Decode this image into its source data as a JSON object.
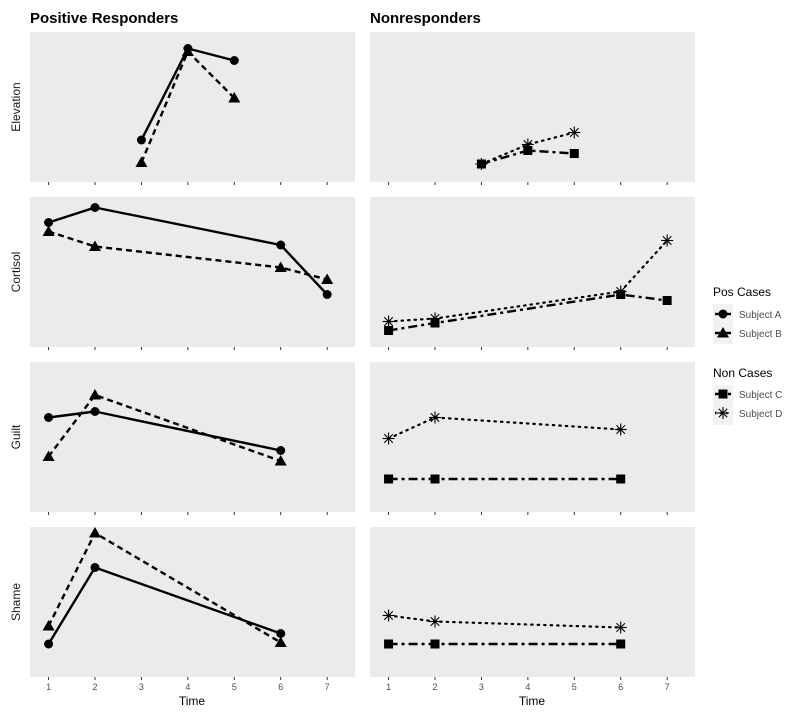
{
  "chart_data": {
    "type": "line",
    "facet_columns": [
      "Positive Responders",
      "Nonresponders"
    ],
    "facet_rows": [
      "Elevation",
      "Cortisol",
      "Guilt",
      "Shame"
    ],
    "xlabel": "Time",
    "x_ticks": [
      "1",
      "2",
      "3",
      "4",
      "5",
      "6",
      "7"
    ],
    "xlim": [
      0.6,
      7.6
    ],
    "ylim_relative": [
      0,
      10
    ],
    "y_ticks_shown": false,
    "grid": false,
    "legend_placement": "right",
    "legends": [
      {
        "title": "Pos Cases",
        "entries": [
          {
            "label": "Subject A",
            "shape": "circle",
            "linetype": "solid"
          },
          {
            "label": "Subject B",
            "shape": "triangle",
            "linetype": "dashed"
          }
        ]
      },
      {
        "title": "Non Cases",
        "entries": [
          {
            "label": "Subject C",
            "shape": "square",
            "linetype": "dotdash"
          },
          {
            "label": "Subject D",
            "shape": "asterisk",
            "linetype": "dotted"
          }
        ]
      }
    ],
    "panels": [
      {
        "row": "Elevation",
        "column": "Positive Responders",
        "series": [
          {
            "name": "Subject A",
            "x": [
              3,
              4,
              5
            ],
            "y": [
              2.8,
              8.9,
              8.1
            ]
          },
          {
            "name": "Subject B",
            "x": [
              3,
              4,
              5
            ],
            "y": [
              1.3,
              8.7,
              5.6
            ]
          }
        ]
      },
      {
        "row": "Elevation",
        "column": "Nonresponders",
        "series": [
          {
            "name": "Subject C",
            "x": [
              3,
              4,
              5
            ],
            "y": [
              1.2,
              2.1,
              1.9
            ]
          },
          {
            "name": "Subject D",
            "x": [
              3,
              4,
              5
            ],
            "y": [
              1.2,
              2.5,
              3.3
            ]
          }
        ]
      },
      {
        "row": "Cortisol",
        "column": "Positive Responders",
        "series": [
          {
            "name": "Subject A",
            "x": [
              1,
              2,
              6,
              7
            ],
            "y": [
              8.3,
              9.3,
              6.8,
              3.5
            ]
          },
          {
            "name": "Subject B",
            "x": [
              1,
              2,
              6,
              7
            ],
            "y": [
              7.7,
              6.7,
              5.3,
              4.5
            ]
          }
        ]
      },
      {
        "row": "Cortisol",
        "column": "Nonresponders",
        "series": [
          {
            "name": "Subject C",
            "x": [
              1,
              2,
              6,
              7
            ],
            "y": [
              1.1,
              1.6,
              3.5,
              3.1
            ]
          },
          {
            "name": "Subject D",
            "x": [
              1,
              2,
              6,
              7
            ],
            "y": [
              1.7,
              1.9,
              3.7,
              7.1
            ]
          }
        ]
      },
      {
        "row": "Guilt",
        "column": "Positive Responders",
        "series": [
          {
            "name": "Subject A",
            "x": [
              1,
              2,
              6
            ],
            "y": [
              6.3,
              6.7,
              4.1
            ]
          },
          {
            "name": "Subject B",
            "x": [
              1,
              2,
              6
            ],
            "y": [
              3.7,
              7.8,
              3.4
            ]
          }
        ]
      },
      {
        "row": "Guilt",
        "column": "Nonresponders",
        "series": [
          {
            "name": "Subject C",
            "x": [
              1,
              2,
              6
            ],
            "y": [
              2.2,
              2.2,
              2.2
            ]
          },
          {
            "name": "Subject D",
            "x": [
              1,
              2,
              6
            ],
            "y": [
              4.9,
              6.3,
              5.5
            ]
          }
        ]
      },
      {
        "row": "Shame",
        "column": "Positive Responders",
        "series": [
          {
            "name": "Subject A",
            "x": [
              1,
              2,
              6
            ],
            "y": [
              2.2,
              7.3,
              2.9
            ]
          },
          {
            "name": "Subject B",
            "x": [
              1,
              2,
              6
            ],
            "y": [
              3.4,
              9.6,
              2.3
            ]
          }
        ]
      },
      {
        "row": "Shame",
        "column": "Nonresponders",
        "series": [
          {
            "name": "Subject C",
            "x": [
              1,
              2,
              6
            ],
            "y": [
              2.2,
              2.2,
              2.2
            ]
          },
          {
            "name": "Subject D",
            "x": [
              1,
              2,
              6
            ],
            "y": [
              4.1,
              3.7,
              3.3
            ]
          }
        ]
      }
    ]
  },
  "colors": {
    "panel_bg": "#ebebeb",
    "ink": "#000000",
    "tick_text": "#4d4d4d"
  }
}
